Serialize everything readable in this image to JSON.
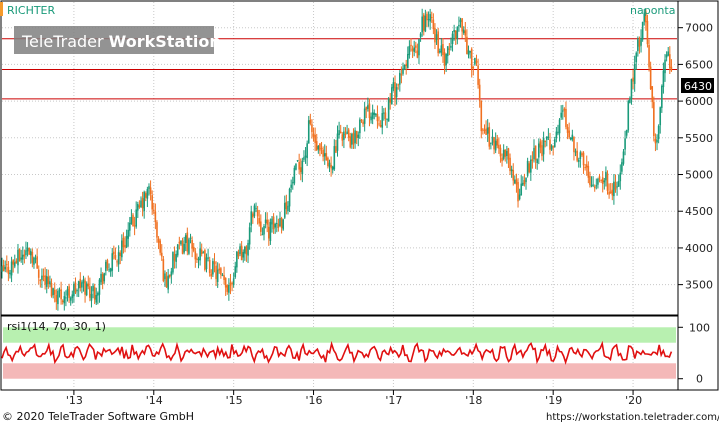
{
  "header": {
    "symbol": "RICHTER",
    "source": "naponta",
    "watermark_light": "TeleTrader ",
    "watermark_bold": "WorkStation"
  },
  "footer": {
    "copyright": "© 2020 TeleTrader Software GmbH",
    "url": "https://workstation.teletrader.com/"
  },
  "colors": {
    "up": "#1a9a7a",
    "down": "#f07020",
    "rsi": "#e01010",
    "level_line": "#cc0000",
    "rsi_upper_zone": "#b8f0b0",
    "rsi_lower_zone": "#f4b8b8"
  },
  "chart_data": [
    {
      "type": "candlestick",
      "title": "RICHTER",
      "last_price": 6430,
      "last_price_label": "6430",
      "ylim": [
        3100,
        7350
      ],
      "yticks": [
        3500,
        4000,
        4500,
        5000,
        5500,
        6000,
        6500,
        7000
      ],
      "horizontal_lines": [
        6850,
        6430,
        6030
      ],
      "xtick_labels": [
        "'13",
        "'14",
        "'15",
        "'16",
        "'17",
        "'18",
        "'19",
        "'20"
      ],
      "xtick_years": [
        2013,
        2014,
        2015,
        2016,
        2017,
        2018,
        2019,
        2020
      ],
      "xlim": [
        2012.1,
        2020.55
      ],
      "price_path": [
        [
          2012.1,
          3650
        ],
        [
          2012.3,
          3850
        ],
        [
          2012.45,
          4000
        ],
        [
          2012.55,
          3700
        ],
        [
          2012.75,
          3400
        ],
        [
          2012.9,
          3350
        ],
        [
          2013.1,
          3500
        ],
        [
          2013.25,
          3400
        ],
        [
          2013.4,
          3700
        ],
        [
          2013.55,
          3900
        ],
        [
          2013.7,
          4250
        ],
        [
          2013.85,
          4600
        ],
        [
          2013.95,
          4800
        ],
        [
          2014.05,
          4100
        ],
        [
          2014.15,
          3500
        ],
        [
          2014.25,
          3850
        ],
        [
          2014.4,
          4100
        ],
        [
          2014.5,
          3950
        ],
        [
          2014.65,
          3800
        ],
        [
          2014.8,
          3650
        ],
        [
          2014.9,
          3450
        ],
        [
          2015.0,
          3650
        ],
        [
          2015.05,
          4000
        ],
        [
          2015.15,
          3900
        ],
        [
          2015.25,
          4600
        ],
        [
          2015.35,
          4300
        ],
        [
          2015.45,
          4250
        ],
        [
          2015.6,
          4400
        ],
        [
          2015.75,
          4950
        ],
        [
          2015.9,
          5300
        ],
        [
          2015.95,
          5700
        ],
        [
          2016.05,
          5300
        ],
        [
          2016.2,
          5100
        ],
        [
          2016.35,
          5600
        ],
        [
          2016.5,
          5400
        ],
        [
          2016.6,
          5800
        ],
        [
          2016.75,
          5900
        ],
        [
          2016.9,
          5700
        ],
        [
          2016.95,
          6050
        ],
        [
          2017.1,
          6300
        ],
        [
          2017.2,
          6700
        ],
        [
          2017.3,
          6600
        ],
        [
          2017.35,
          7050
        ],
        [
          2017.45,
          7150
        ],
        [
          2017.55,
          6800
        ],
        [
          2017.65,
          6500
        ],
        [
          2017.75,
          6900
        ],
        [
          2017.85,
          7100
        ],
        [
          2017.95,
          6600
        ],
        [
          2018.05,
          6400
        ],
        [
          2018.1,
          5700
        ],
        [
          2018.2,
          5500
        ],
        [
          2018.35,
          5300
        ],
        [
          2018.45,
          5200
        ],
        [
          2018.55,
          4700
        ],
        [
          2018.65,
          5000
        ],
        [
          2018.75,
          5300
        ],
        [
          2018.9,
          5400
        ],
        [
          2019.05,
          5500
        ],
        [
          2019.1,
          5900
        ],
        [
          2019.2,
          5600
        ],
        [
          2019.3,
          5300
        ],
        [
          2019.4,
          5100
        ],
        [
          2019.5,
          4900
        ],
        [
          2019.6,
          5000
        ],
        [
          2019.7,
          4850
        ],
        [
          2019.8,
          4800
        ],
        [
          2019.9,
          5400
        ],
        [
          2019.95,
          6000
        ],
        [
          2020.05,
          6700
        ],
        [
          2020.1,
          6900
        ],
        [
          2020.15,
          7150
        ],
        [
          2020.2,
          6500
        ],
        [
          2020.28,
          5300
        ],
        [
          2020.35,
          6100
        ],
        [
          2020.42,
          6650
        ],
        [
          2020.48,
          6430
        ]
      ]
    },
    {
      "type": "line",
      "title": "rsi1(14, 70, 30, 1)",
      "series": [
        {
          "values_range": [
            25,
            75
          ]
        }
      ],
      "ylim": [
        -20,
        120
      ],
      "yticks": [
        0,
        100
      ],
      "zones": [
        {
          "from": 70,
          "to": 100
        },
        {
          "from": 0,
          "to": 30
        }
      ]
    }
  ]
}
